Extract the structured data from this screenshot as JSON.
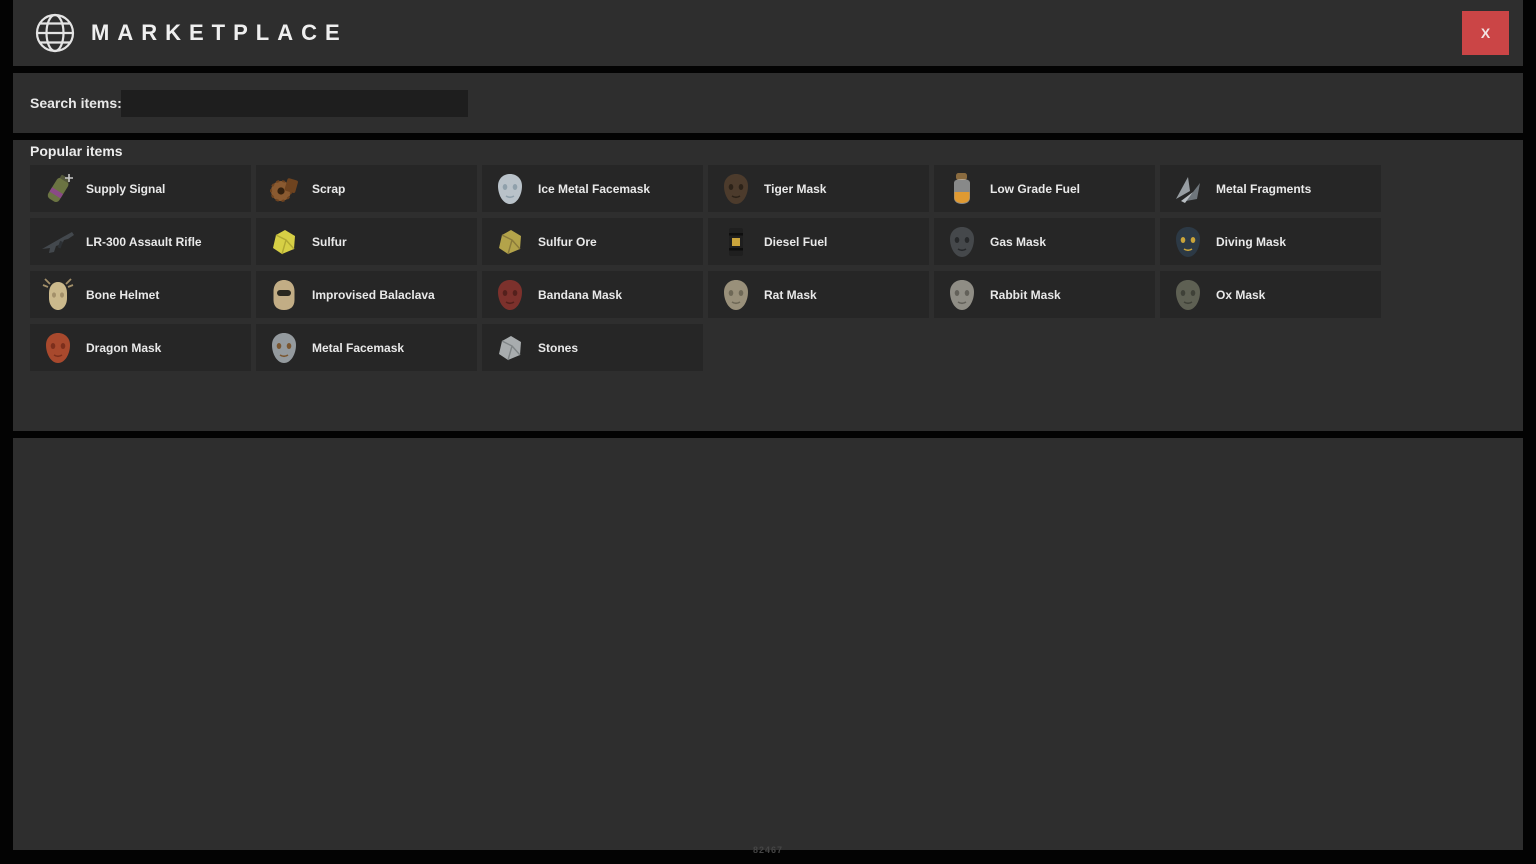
{
  "header": {
    "title": "MARKETPLACE",
    "close_label": "X"
  },
  "search": {
    "label": "Search items:",
    "value": "",
    "placeholder": ""
  },
  "popular": {
    "heading": "Popular items",
    "items": [
      {
        "label": "Supply Signal",
        "icon": "supply-signal-icon",
        "shape": "canister",
        "color": "#6b7442",
        "accent": "#8a4a86"
      },
      {
        "label": "Scrap",
        "icon": "scrap-icon",
        "shape": "gear",
        "color": "#8a5a30",
        "accent": "#6e431f"
      },
      {
        "label": "Ice Metal Facemask",
        "icon": "ice-metal-facemask-icon",
        "shape": "mask",
        "color": "#b9c2c9",
        "accent": "#8fa0ab"
      },
      {
        "label": "Tiger Mask",
        "icon": "tiger-mask-icon",
        "shape": "mask",
        "color": "#4c3b2c",
        "accent": "#2c2218"
      },
      {
        "label": "Low Grade Fuel",
        "icon": "low-grade-fuel-icon",
        "shape": "bottle",
        "color": "#d9dadb",
        "accent": "#e09a32"
      },
      {
        "label": "Metal Fragments",
        "icon": "metal-fragments-icon",
        "shape": "shards",
        "color": "#979da2",
        "accent": "#6f767c"
      },
      {
        "label": "LR-300 Assault Rifle",
        "icon": "lr300-assault-rifle-icon",
        "shape": "rifle",
        "color": "#43484d",
        "accent": "#2c3034"
      },
      {
        "label": "Sulfur",
        "icon": "sulfur-icon",
        "shape": "rock",
        "color": "#d6cf45",
        "accent": "#b0a832"
      },
      {
        "label": "Sulfur Ore",
        "icon": "sulfur-ore-icon",
        "shape": "rock",
        "color": "#b3a34a",
        "accent": "#8a7a3a"
      },
      {
        "label": "Diesel Fuel",
        "icon": "diesel-fuel-icon",
        "shape": "barrel",
        "color": "#1f1f1f",
        "accent": "#caa43c"
      },
      {
        "label": "Gas Mask",
        "icon": "gas-mask-icon",
        "shape": "mask",
        "color": "#45484b",
        "accent": "#26282a"
      },
      {
        "label": "Diving Mask",
        "icon": "diving-mask-icon",
        "shape": "mask",
        "color": "#2c3945",
        "accent": "#c9a43a"
      },
      {
        "label": "Bone Helmet",
        "icon": "bone-helmet-icon",
        "shape": "helmet",
        "color": "#cbb98c",
        "accent": "#a3906a"
      },
      {
        "label": "Improvised Balaclava",
        "icon": "improvised-balaclava-icon",
        "shape": "balaclava",
        "color": "#c2ad85",
        "accent": "#8f7c5a"
      },
      {
        "label": "Bandana Mask",
        "icon": "bandana-mask-icon",
        "shape": "mask",
        "color": "#7c312c",
        "accent": "#54201c"
      },
      {
        "label": "Rat Mask",
        "icon": "rat-mask-icon",
        "shape": "mask",
        "color": "#99907a",
        "accent": "#6e6856"
      },
      {
        "label": "Rabbit Mask",
        "icon": "rabbit-mask-icon",
        "shape": "mask",
        "color": "#8f8d85",
        "accent": "#63615a"
      },
      {
        "label": "Ox Mask",
        "icon": "ox-mask-icon",
        "shape": "mask",
        "color": "#5e6053",
        "accent": "#3f4138"
      },
      {
        "label": "Dragon Mask",
        "icon": "dragon-mask-icon",
        "shape": "mask",
        "color": "#a8492d",
        "accent": "#7c2f1c"
      },
      {
        "label": "Metal Facemask",
        "icon": "metal-facemask-icon",
        "shape": "mask",
        "color": "#949a9e",
        "accent": "#7a5630"
      },
      {
        "label": "Stones",
        "icon": "stones-icon",
        "shape": "rock",
        "color": "#a8acae",
        "accent": "#7f8486"
      }
    ]
  },
  "footer": {
    "watermark": "82467"
  },
  "colors": {
    "page_bg": "#030303",
    "panel_bg": "#2e2e2e",
    "card_bg": "#262626",
    "input_bg": "#1e1e1e",
    "close_button": "#cb4546",
    "text": "#e9e9e9"
  }
}
